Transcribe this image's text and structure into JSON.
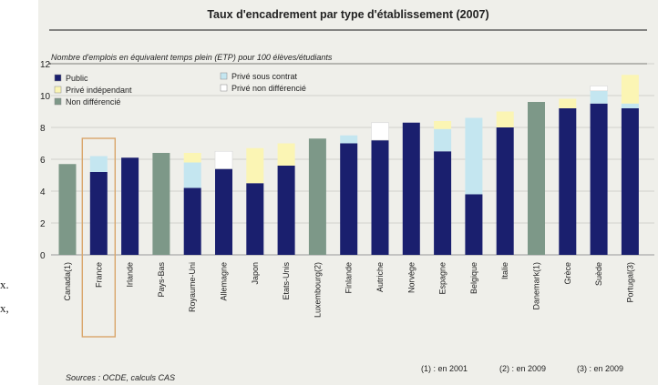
{
  "page": {
    "margin_text": [
      "x.",
      "x,"
    ]
  },
  "colors": {
    "background": "#efefea",
    "public": "#1a1f6e",
    "prive_independant": "#fbf5b4",
    "prive_sous_contrat": "#c4e6f0",
    "prive_non_differencie": "#ffffff",
    "non_differencie": "#7d9888",
    "highlight_box": "#d9a56a"
  },
  "chart_data": {
    "type": "bar",
    "stacked": true,
    "title": "Taux d'encadrement par type d'établissement (2007)",
    "subtitle": "Nombre d'emplois en équivalent temps plein (ETP) pour 100 élèves/étudiants",
    "xlabel": "",
    "ylabel": "",
    "ylim": [
      0,
      12
    ],
    "yticks": [
      0,
      2,
      4,
      6,
      8,
      10,
      12
    ],
    "grid": true,
    "legend_position": "top-left",
    "highlighted_category": "France",
    "categories": [
      "Canada(1)",
      "France",
      "Irlande",
      "Pays-Bas",
      "Royaume-Uni",
      "Allemagne",
      "Japon",
      "Etats-Unis",
      "Luxembourg(2)",
      "Finlande",
      "Autriche",
      "Norvège",
      "Espagne",
      "Belgique",
      "Italie",
      "Danemark(1)",
      "Grèce",
      "Suède",
      "Portugal(3)"
    ],
    "series": [
      {
        "name": "Public",
        "color_key": "public",
        "values": [
          0,
          5.2,
          6.1,
          0,
          4.2,
          5.4,
          4.5,
          5.6,
          0,
          7.0,
          7.2,
          8.3,
          6.5,
          3.8,
          8.0,
          0,
          9.2,
          9.5,
          9.2
        ]
      },
      {
        "name": "Privé sous contrat",
        "color_key": "prive_sous_contrat",
        "values": [
          0,
          1.0,
          0,
          0,
          1.6,
          0,
          0,
          0,
          0,
          0.5,
          0,
          0,
          1.4,
          4.8,
          0,
          0,
          0,
          0.8,
          0.3
        ]
      },
      {
        "name": "Privé indépendant",
        "color_key": "prive_independant",
        "values": [
          0,
          0,
          0,
          0,
          0.6,
          0,
          2.2,
          1.4,
          0,
          0,
          0,
          0,
          0.5,
          0,
          1.0,
          0,
          0.6,
          0,
          1.8
        ]
      },
      {
        "name": "Privé non différencié",
        "color_key": "prive_non_differencie",
        "values": [
          0,
          0,
          0,
          0,
          0,
          1.1,
          0,
          0,
          0,
          0,
          1.1,
          0,
          0,
          0,
          0,
          0,
          0,
          0.3,
          0
        ]
      },
      {
        "name": "Non différencié",
        "color_key": "non_differencie",
        "values": [
          5.7,
          0,
          0,
          6.4,
          0,
          0,
          0,
          0,
          7.3,
          0,
          0,
          0,
          0,
          0,
          0,
          9.6,
          0,
          0,
          0
        ]
      }
    ],
    "legend": [
      {
        "label": "Public",
        "color_key": "public"
      },
      {
        "label": "Privé indépendant",
        "color_key": "prive_independant"
      },
      {
        "label": "Non différencié",
        "color_key": "non_differencie"
      },
      {
        "label": "Privé sous contrat",
        "color_key": "prive_sous_contrat"
      },
      {
        "label": "Privé non différencié",
        "color_key": "prive_non_differencie"
      }
    ],
    "source": "Sources : OCDE, calculs CAS",
    "footnotes": [
      "(1) : en 2001",
      "(2) : en 2009",
      "(3) : en 2009"
    ]
  }
}
